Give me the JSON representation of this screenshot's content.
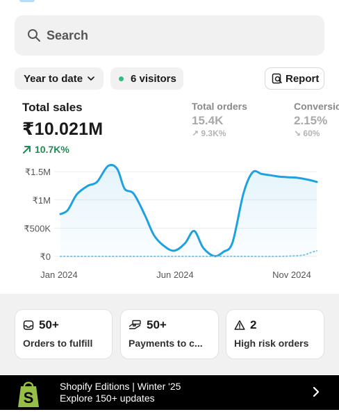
{
  "search": {
    "placeholder": "Search",
    "icon": "search-icon"
  },
  "filters": {
    "date_range": "Year to date",
    "visitors": "6 visitors",
    "visitors_dot_color": "#2fbf7a",
    "report_label": "Report"
  },
  "metrics": {
    "total_sales": {
      "label": "Total sales",
      "value": "₹10.021M",
      "delta": "10.7K%"
    },
    "total_orders": {
      "label": "Total orders",
      "value": "15.4K",
      "delta": "9.3K%"
    },
    "conversion": {
      "label": "Conversio",
      "value": "2.15%",
      "delta": "60%"
    }
  },
  "chart_data": {
    "type": "line",
    "y_ticks": [
      "₹1.5M",
      "₹1M",
      "₹500K",
      "₹0"
    ],
    "x_ticks": [
      "Jan 2024",
      "Jun 2024",
      "Nov 2024"
    ],
    "ylim": [
      0,
      1600000
    ],
    "series": [
      {
        "style": "solid",
        "color": "#1da1e2",
        "points": [
          [
            0,
            750000
          ],
          [
            0.4,
            820000
          ],
          [
            0.9,
            1100000
          ],
          [
            1.5,
            1250000
          ],
          [
            2.0,
            1320000
          ],
          [
            2.6,
            1600000
          ],
          [
            3.1,
            1550000
          ],
          [
            3.5,
            1200000
          ],
          [
            4.0,
            1110000
          ],
          [
            4.6,
            740000
          ],
          [
            5.1,
            380000
          ],
          [
            5.6,
            200000
          ],
          [
            6.2,
            100000
          ],
          [
            6.8,
            230000
          ],
          [
            7.3,
            450000
          ],
          [
            7.8,
            150000
          ],
          [
            8.4,
            5000
          ],
          [
            8.9,
            80000
          ],
          [
            9.4,
            250000
          ],
          [
            10.0,
            1120000
          ],
          [
            10.5,
            1490000
          ],
          [
            11.0,
            1460000
          ],
          [
            11.6,
            1430000
          ],
          [
            12.0,
            1410000
          ],
          [
            12.6,
            1400000
          ],
          [
            13.0,
            1390000
          ],
          [
            13.5,
            1360000
          ],
          [
            14.0,
            1320000
          ]
        ]
      },
      {
        "style": "dotted",
        "color": "#7cc4ea",
        "points": [
          [
            0,
            0
          ],
          [
            2,
            0
          ],
          [
            4,
            0
          ],
          [
            6,
            0
          ],
          [
            8,
            0
          ],
          [
            10,
            0
          ],
          [
            12,
            0
          ],
          [
            13.2,
            20000
          ],
          [
            13.6,
            60000
          ],
          [
            14,
            100000
          ]
        ]
      }
    ],
    "grid": true
  },
  "cards": [
    {
      "count": "50+",
      "label": "Orders to fulfill",
      "icon": "inbox-icon"
    },
    {
      "count": "50+",
      "label": "Payments to c...",
      "icon": "payment-hand-icon"
    },
    {
      "count": "2",
      "label": "High risk orders",
      "icon": "warning-icon"
    }
  ],
  "banner": {
    "title": "Shopify Editions | Winter '25",
    "subtitle": "Explore 150+ updates",
    "logo_color": "#95bf47",
    "logo_letter": "S"
  }
}
